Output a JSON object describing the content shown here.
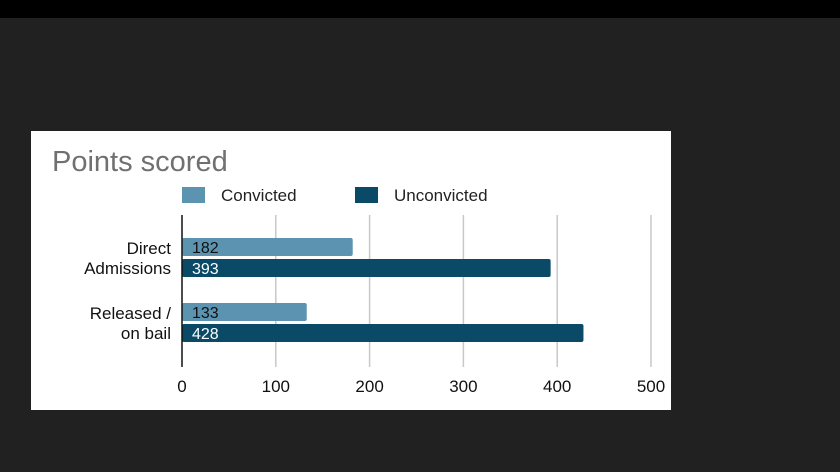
{
  "chart_data": {
    "type": "bar",
    "orientation": "horizontal",
    "title": "Points scored",
    "categories": [
      "Direct\nAdmissions",
      "Released /\non bail"
    ],
    "series": [
      {
        "name": "Convicted",
        "color": "#5b93b1",
        "label_color": "#111111",
        "values": [
          182,
          133
        ]
      },
      {
        "name": "Unconvicted",
        "color": "#0b4a67",
        "label_color": "#ffffff",
        "values": [
          393,
          428
        ]
      }
    ],
    "xlim": [
      0,
      500
    ],
    "ticks": [
      0,
      100,
      200,
      300,
      400,
      500
    ],
    "grid": true,
    "legend_position": "top",
    "data_labels": true
  },
  "colors": {
    "page_background": "#212121",
    "top_bar": "#000000",
    "card_background": "#ffffff",
    "title": "#707070",
    "gridline": "#c8c8c8",
    "axis": "#111111"
  }
}
